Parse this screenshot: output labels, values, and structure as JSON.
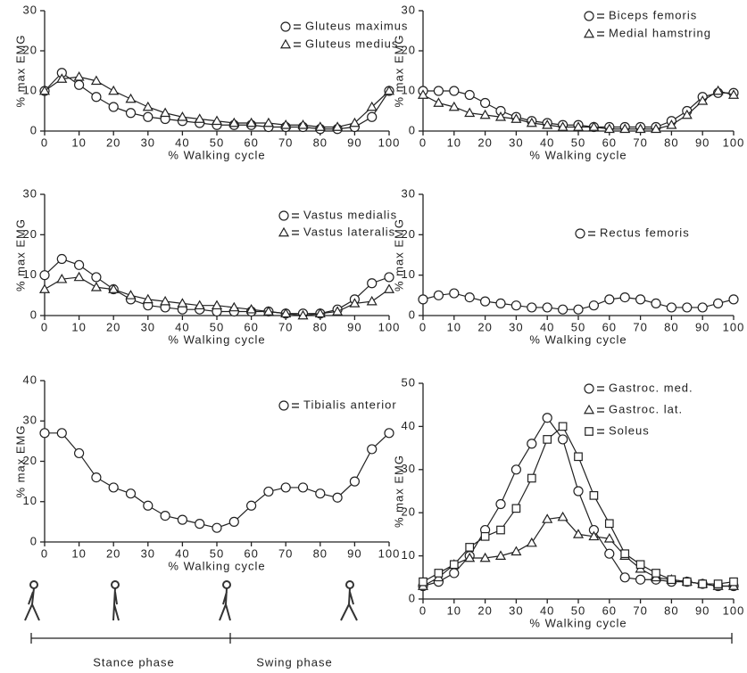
{
  "chart_data": [
    {
      "type": "line",
      "xlabel": "% Walking cycle",
      "ylabel": "% max EMG",
      "x": [
        0,
        5,
        10,
        15,
        20,
        25,
        30,
        35,
        40,
        45,
        50,
        55,
        60,
        65,
        70,
        75,
        80,
        85,
        90,
        95,
        100
      ],
      "xlim": [
        0,
        100
      ],
      "xticks": [
        0,
        10,
        20,
        30,
        40,
        50,
        60,
        70,
        80,
        90,
        100
      ],
      "ylim": [
        0,
        30
      ],
      "yticks": [
        0,
        10,
        20,
        30
      ],
      "series": [
        {
          "name": "Gluteus maximus",
          "marker": "circle",
          "color": "#222",
          "values": [
            10,
            14.5,
            11.5,
            8.5,
            6,
            4.5,
            3.5,
            3,
            2.5,
            2,
            1.5,
            1.5,
            1.5,
            1,
            1,
            1,
            0.5,
            0.5,
            1,
            3.5,
            10
          ]
        },
        {
          "name": "Gluteus medius",
          "marker": "triangle",
          "color": "#222",
          "values": [
            10,
            13,
            13.5,
            12.5,
            10,
            8,
            6,
            4.5,
            3.5,
            3,
            2.5,
            2,
            2,
            2,
            1.5,
            1.5,
            1,
            1,
            2,
            6,
            10
          ]
        }
      ]
    },
    {
      "type": "line",
      "xlabel": "% Walking cycle",
      "ylabel": "% max EMG",
      "x": [
        0,
        5,
        10,
        15,
        20,
        25,
        30,
        35,
        40,
        45,
        50,
        55,
        60,
        65,
        70,
        75,
        80,
        85,
        90,
        95,
        100
      ],
      "xlim": [
        0,
        100
      ],
      "xticks": [
        0,
        10,
        20,
        30,
        40,
        50,
        60,
        70,
        80,
        90,
        100
      ],
      "ylim": [
        0,
        30
      ],
      "yticks": [
        0,
        10,
        20,
        30
      ],
      "series": [
        {
          "name": "Biceps femoris",
          "marker": "circle",
          "color": "#222",
          "values": [
            10,
            10,
            10,
            9,
            7,
            5,
            3.5,
            2.5,
            2,
            1.5,
            1.5,
            1,
            1,
            1,
            1,
            1,
            2.5,
            5,
            8.5,
            9.5,
            9.5
          ]
        },
        {
          "name": "Medial hamstring",
          "marker": "triangle",
          "color": "#222",
          "values": [
            9,
            7,
            6,
            4.5,
            4,
            3.5,
            3,
            2,
            1.5,
            1,
            1,
            1,
            0.5,
            0.5,
            0.5,
            0.5,
            1.5,
            4,
            7.5,
            10,
            9
          ]
        }
      ]
    },
    {
      "type": "line",
      "xlabel": "% Walking cycle",
      "ylabel": "% max EMG",
      "x": [
        0,
        5,
        10,
        15,
        20,
        25,
        30,
        35,
        40,
        45,
        50,
        55,
        60,
        65,
        70,
        75,
        80,
        85,
        90,
        95,
        100
      ],
      "xlim": [
        0,
        100
      ],
      "xticks": [
        0,
        10,
        20,
        30,
        40,
        50,
        60,
        70,
        80,
        90,
        100
      ],
      "ylim": [
        0,
        30
      ],
      "yticks": [
        0,
        10,
        20,
        30
      ],
      "series": [
        {
          "name": "Vastus medialis",
          "marker": "circle",
          "color": "#222",
          "values": [
            10,
            14,
            12.5,
            9.5,
            6.5,
            4,
            2.5,
            2,
            1.5,
            1.5,
            1,
            1,
            1,
            1,
            0.5,
            0.5,
            0.5,
            1.5,
            4,
            8,
            9.5
          ]
        },
        {
          "name": "Vastus lateralis",
          "marker": "triangle",
          "color": "#222",
          "values": [
            6.5,
            9,
            9.5,
            7,
            6.5,
            5,
            4,
            3.5,
            3,
            2.5,
            2.5,
            2,
            1.5,
            1,
            0.5,
            0,
            0.5,
            1,
            3,
            3.5,
            6.5
          ]
        }
      ]
    },
    {
      "type": "line",
      "xlabel": "% Walking cycle",
      "ylabel": "% max EMG",
      "x": [
        0,
        5,
        10,
        15,
        20,
        25,
        30,
        35,
        40,
        45,
        50,
        55,
        60,
        65,
        70,
        75,
        80,
        85,
        90,
        95,
        100
      ],
      "xlim": [
        0,
        100
      ],
      "xticks": [
        0,
        10,
        20,
        30,
        40,
        50,
        60,
        70,
        80,
        90,
        100
      ],
      "ylim": [
        0,
        30
      ],
      "yticks": [
        0,
        10,
        20,
        30
      ],
      "series": [
        {
          "name": "Rectus femoris",
          "marker": "circle",
          "color": "#222",
          "values": [
            4,
            5,
            5.5,
            4.5,
            3.5,
            3,
            2.5,
            2,
            2,
            1.5,
            1.5,
            2.5,
            4,
            4.5,
            4,
            3,
            2,
            2,
            2,
            3,
            4
          ]
        }
      ]
    },
    {
      "type": "line",
      "xlabel": "% Walking cycle",
      "ylabel": "% max EMG",
      "x": [
        0,
        5,
        10,
        15,
        20,
        25,
        30,
        35,
        40,
        45,
        50,
        55,
        60,
        65,
        70,
        75,
        80,
        85,
        90,
        95,
        100
      ],
      "xlim": [
        0,
        100
      ],
      "xticks": [
        0,
        10,
        20,
        30,
        40,
        50,
        60,
        70,
        80,
        90,
        100
      ],
      "ylim": [
        0,
        40
      ],
      "yticks": [
        0,
        10,
        20,
        30,
        40
      ],
      "series": [
        {
          "name": "Tibialis anterior",
          "marker": "circle",
          "color": "#222",
          "values": [
            27,
            27,
            22,
            16,
            13.5,
            12,
            9,
            6.5,
            5.5,
            4.5,
            3.5,
            5,
            9,
            12.5,
            13.5,
            13.5,
            12,
            11,
            15,
            23,
            27
          ]
        }
      ]
    },
    {
      "type": "line",
      "xlabel": "% Walking cycle",
      "ylabel": "% max EMG",
      "x": [
        0,
        5,
        10,
        15,
        20,
        25,
        30,
        35,
        40,
        45,
        50,
        55,
        60,
        65,
        70,
        75,
        80,
        85,
        90,
        95,
        100
      ],
      "xlim": [
        0,
        100
      ],
      "xticks": [
        0,
        10,
        20,
        30,
        40,
        50,
        60,
        70,
        80,
        90,
        100
      ],
      "ylim": [
        0,
        50
      ],
      "yticks": [
        0,
        10,
        20,
        30,
        40,
        50
      ],
      "series": [
        {
          "name": "Gastroc. med.",
          "marker": "circle",
          "color": "#222",
          "values": [
            3,
            4,
            6,
            10,
            16,
            22,
            30,
            36,
            42,
            37,
            25,
            16,
            10.5,
            5,
            4.5,
            4.5,
            4,
            4,
            3.5,
            3,
            3
          ]
        },
        {
          "name": "Gastroc. lat.",
          "marker": "triangle",
          "color": "#222",
          "values": [
            3,
            5,
            8,
            9.5,
            9.5,
            10,
            11,
            13,
            18.5,
            19,
            15,
            14.5,
            14,
            10,
            7,
            5,
            4.5,
            4,
            3.5,
            3,
            3
          ]
        },
        {
          "name": "Soleus",
          "marker": "square",
          "color": "#222",
          "values": [
            4,
            6,
            8,
            12,
            14.5,
            16,
            21,
            28,
            37,
            40,
            33,
            24,
            17.5,
            10.5,
            8,
            6,
            4.5,
            4,
            3.5,
            3.5,
            4
          ]
        }
      ]
    }
  ],
  "phases": [
    "Stance phase",
    "Swing phase"
  ]
}
